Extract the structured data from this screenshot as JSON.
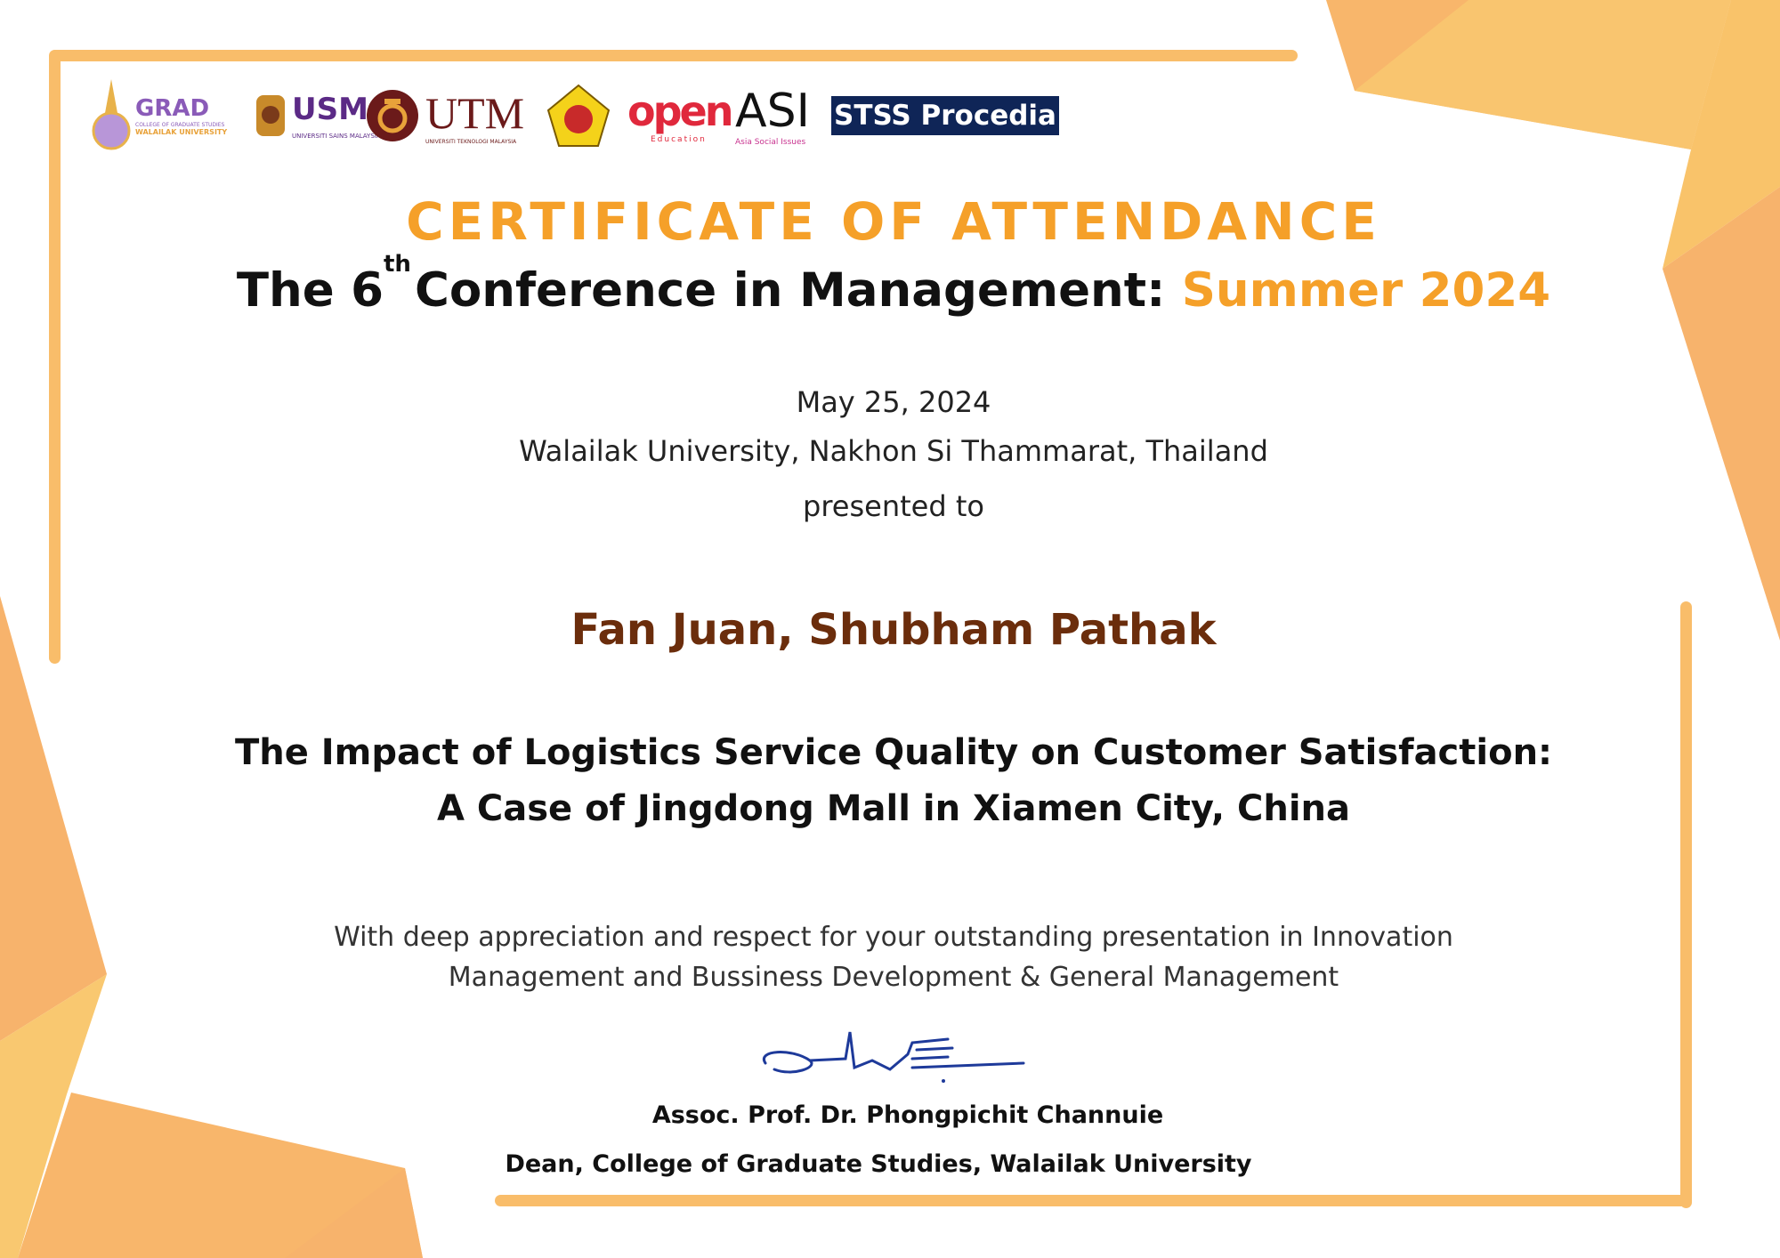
{
  "logos": {
    "grad": {
      "main": "GRAD",
      "sub1": "COLLEGE OF GRADUATE STUDIES",
      "sub2": "WALAILAK UNIVERSITY"
    },
    "usm": {
      "main": "USM",
      "sub": "UNIVERSITI SAINS MALAYSIA"
    },
    "utm": {
      "main": "UTM",
      "sub": "UNIVERSITI TEKNOLOGI MALAYSIA"
    },
    "open": {
      "main": "open",
      "sub": "Education"
    },
    "asi": {
      "main": "ASI",
      "sub": "Asia Social Issues"
    },
    "stss": {
      "main": "STSS Procedia"
    }
  },
  "certificate": {
    "title": "CERTIFICATE OF ATTENDANCE",
    "subtitle_prefix": "The 6",
    "subtitle_sup": "th",
    "subtitle_main": "Conference in Management:",
    "subtitle_accent": "Summer 2024",
    "date": "May 25, 2024",
    "location": "Walailak University, Nakhon Si Thammarat, Thailand",
    "presented_to": "presented to",
    "recipients": "Fan Juan, Shubham Pathak",
    "paper_title_line1": "The Impact of Logistics Service Quality on Customer Satisfaction:",
    "paper_title_line2": "A Case of Jingdong Mall in Xiamen City, China",
    "appreciation_line1": "With deep appreciation and respect for your outstanding presentation in Innovation",
    "appreciation_line2": "Management and Bussiness Development & General Management",
    "signatory_name": "Assoc. Prof. Dr. Phongpichit Channuie",
    "signatory_title": "Dean, College of Graduate Studies, Walailak University"
  },
  "colors": {
    "accent": "#f5a029",
    "frame": "#f9bd6a",
    "recipient": "#6b2d0c",
    "stss_bg": "#0f2557"
  }
}
